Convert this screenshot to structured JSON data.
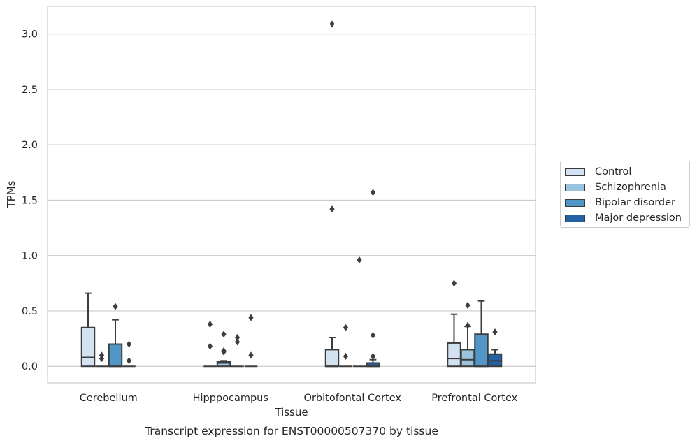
{
  "chart_data": {
    "type": "boxplot",
    "title": "",
    "caption": "Transcript expression for ENST00000507370 by tissue",
    "xlabel": "Tissue",
    "ylabel": "TPMs",
    "ylim": [
      -0.15,
      3.25
    ],
    "yticks": [
      "0.0",
      "0.5",
      "1.0",
      "1.5",
      "2.0",
      "2.5",
      "3.0"
    ],
    "grid": "horizontal",
    "legend_position": "right",
    "categories": [
      "Cerebellum",
      "Hipppocampus",
      "Orbitofontal Cortex",
      "Prefrontal Cortex"
    ],
    "series": [
      {
        "name": "Control",
        "color": "#d2e2f1",
        "boxes": [
          {
            "q1": 0,
            "median": 0.08,
            "q3": 0.35,
            "whisker_low": 0,
            "whisker_high": 0.66,
            "outliers": []
          },
          {
            "q1": 0,
            "median": 0,
            "q3": 0,
            "whisker_low": 0,
            "whisker_high": 0,
            "outliers": [
              0.38,
              0.18
            ]
          },
          {
            "q1": 0,
            "median": 0,
            "q3": 0.15,
            "whisker_low": 0,
            "whisker_high": 0.26,
            "outliers": [
              3.09,
              1.42
            ]
          },
          {
            "q1": 0,
            "median": 0.07,
            "q3": 0.21,
            "whisker_low": 0,
            "whisker_high": 0.47,
            "outliers": [
              0.75
            ]
          }
        ]
      },
      {
        "name": "Schizophrenia",
        "color": "#9ac4de",
        "boxes": [
          {
            "q1": 0,
            "median": 0,
            "q3": 0,
            "whisker_low": 0,
            "whisker_high": 0,
            "outliers": [
              0.1,
              0.07
            ]
          },
          {
            "q1": 0,
            "median": 0.03,
            "q3": 0.04,
            "whisker_low": 0,
            "whisker_high": 0.05,
            "outliers": [
              0.29,
              0.14,
              0.13
            ]
          },
          {
            "q1": 0,
            "median": 0,
            "q3": 0,
            "whisker_low": 0,
            "whisker_high": 0,
            "outliers": [
              0.35,
              0.09
            ]
          },
          {
            "q1": 0,
            "median": 0.06,
            "q3": 0.15,
            "whisker_low": 0,
            "whisker_high": 0.36,
            "outliers": [
              0.55,
              0.37
            ]
          }
        ]
      },
      {
        "name": "Bipolar disorder",
        "color": "#5096c6",
        "boxes": [
          {
            "q1": 0,
            "median": 0,
            "q3": 0.2,
            "whisker_low": 0,
            "whisker_high": 0.42,
            "outliers": [
              0.54
            ]
          },
          {
            "q1": 0,
            "median": 0,
            "q3": 0,
            "whisker_low": 0,
            "whisker_high": 0,
            "outliers": [
              0.26,
              0.22
            ]
          },
          {
            "q1": 0,
            "median": 0,
            "q3": 0,
            "whisker_low": 0,
            "whisker_high": 0,
            "outliers": [
              0.96
            ]
          },
          {
            "q1": 0,
            "median": 0,
            "q3": 0.29,
            "whisker_low": 0,
            "whisker_high": 0.59,
            "outliers": []
          }
        ]
      },
      {
        "name": "Major depression",
        "color": "#2361a5",
        "boxes": [
          {
            "q1": 0,
            "median": 0,
            "q3": 0,
            "whisker_low": 0,
            "whisker_high": 0,
            "outliers": [
              0.2,
              0.05
            ]
          },
          {
            "q1": 0,
            "median": 0,
            "q3": 0,
            "whisker_low": 0,
            "whisker_high": 0,
            "outliers": [
              0.44,
              0.1
            ]
          },
          {
            "q1": 0,
            "median": 0,
            "q3": 0.03,
            "whisker_low": 0,
            "whisker_high": 0.06,
            "outliers": [
              1.57,
              0.28,
              0.09
            ]
          },
          {
            "q1": 0,
            "median": 0.05,
            "q3": 0.11,
            "whisker_low": 0,
            "whisker_high": 0.15,
            "outliers": [
              0.31
            ]
          }
        ]
      }
    ]
  }
}
